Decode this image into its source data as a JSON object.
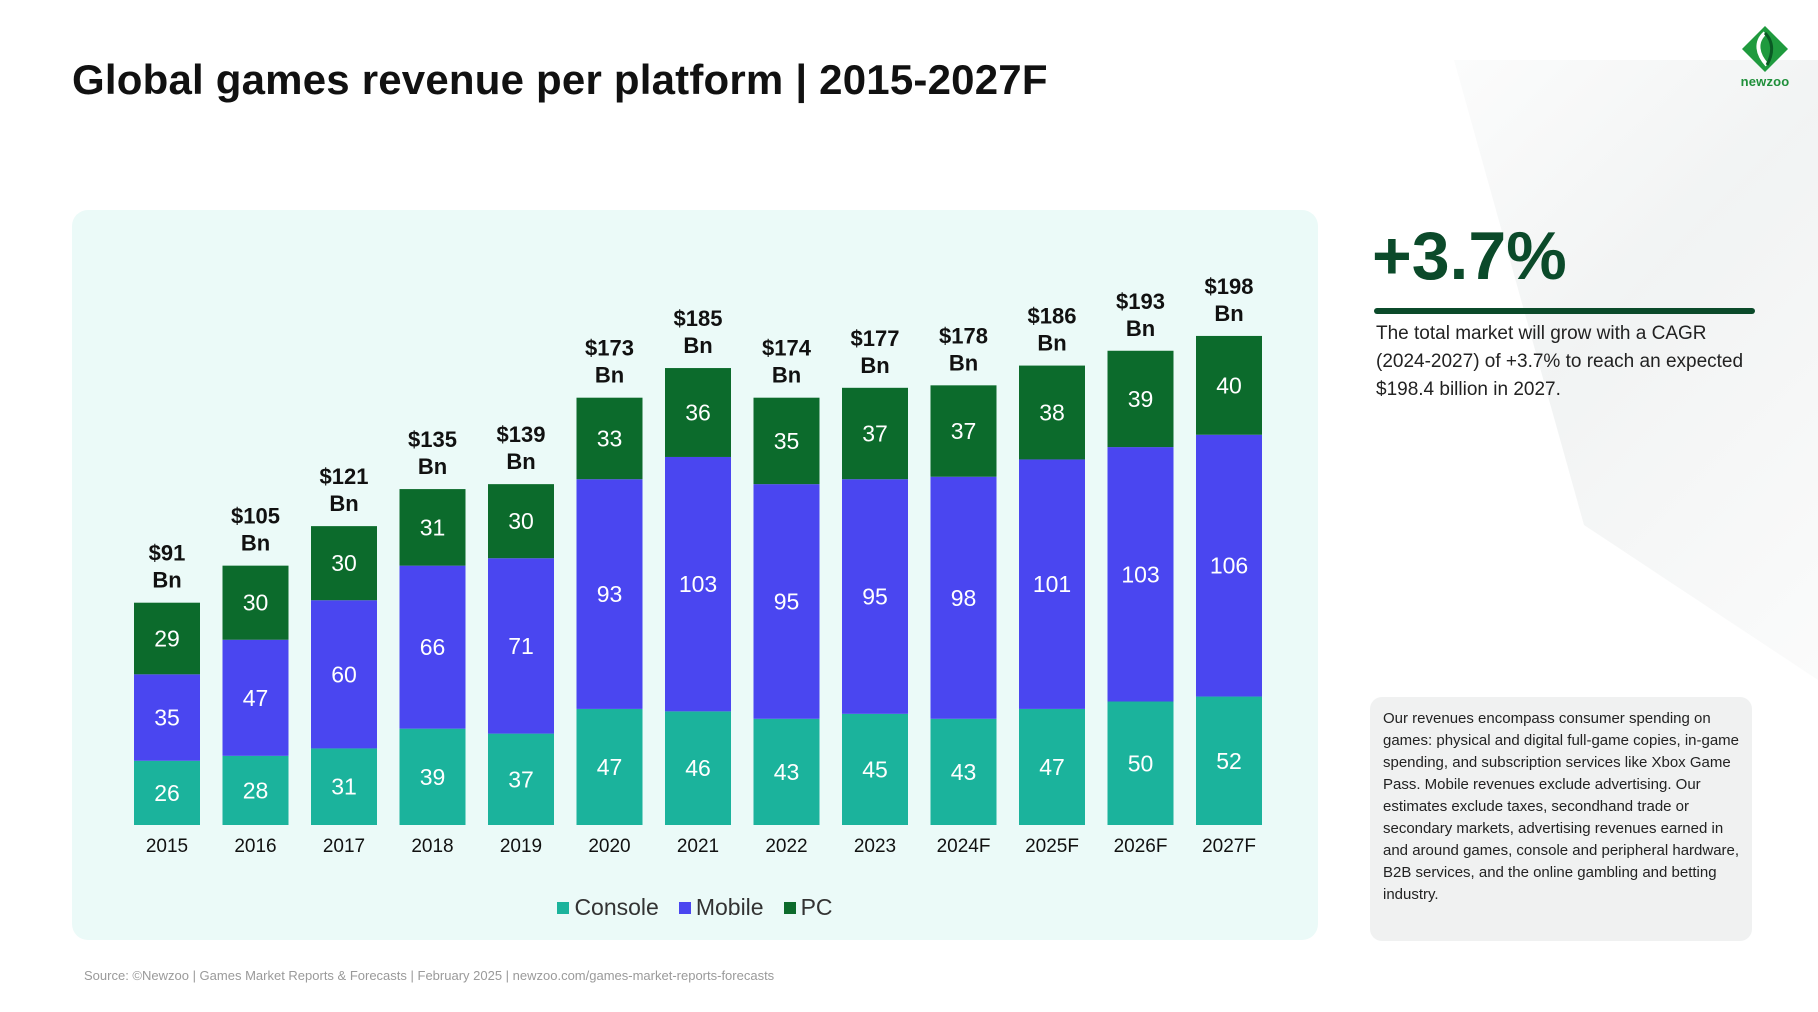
{
  "title": "Global games revenue per platform | 2015-2027F",
  "logo": {
    "text": "newzoo",
    "icon": "newzoo-logo-icon"
  },
  "colors": {
    "console": "#1bb39c",
    "mobile": "#4a46f0",
    "pc": "#0c6b2c",
    "accent": "#0b4a2a",
    "panel": "#ebfaf8"
  },
  "chart_data": {
    "type": "bar",
    "stacked": true,
    "categories": [
      "2015",
      "2016",
      "2017",
      "2018",
      "2019",
      "2020",
      "2021",
      "2022",
      "2023",
      "2024F",
      "2025F",
      "2026F",
      "2027F"
    ],
    "series": [
      {
        "name": "Console",
        "values": [
          26,
          28,
          31,
          39,
          37,
          47,
          46,
          43,
          45,
          43,
          47,
          50,
          52
        ]
      },
      {
        "name": "Mobile",
        "values": [
          35,
          47,
          60,
          66,
          71,
          93,
          103,
          95,
          95,
          98,
          101,
          103,
          106
        ]
      },
      {
        "name": "PC",
        "values": [
          29,
          30,
          30,
          31,
          30,
          33,
          36,
          35,
          37,
          37,
          38,
          39,
          40
        ]
      }
    ],
    "totals": [
      [
        "$91",
        "Bn"
      ],
      [
        "$105",
        "Bn"
      ],
      [
        "$121",
        "Bn"
      ],
      [
        "$135",
        "Bn"
      ],
      [
        "$139",
        "Bn"
      ],
      [
        "$173",
        "Bn"
      ],
      [
        "$185",
        "Bn"
      ],
      [
        "$174",
        "Bn"
      ],
      [
        "$177",
        "Bn"
      ],
      [
        "$178",
        "Bn"
      ],
      [
        "$186",
        "Bn"
      ],
      [
        "$193",
        "Bn"
      ],
      [
        "$198",
        "Bn"
      ]
    ],
    "legend": "bottom-center",
    "grid": false,
    "ylim": [
      0,
      198
    ]
  },
  "highlight": {
    "value": "+3.7%",
    "text": "The total market will grow with a CAGR (2024-2027) of +3.7% to reach an expected $198.4 billion in 2027."
  },
  "note": "Our revenues encompass consumer spending on games: physical and digital full-game copies, in-game spending, and subscription services like Xbox Game Pass. Mobile revenues exclude advertising. Our estimates exclude taxes, secondhand trade or secondary markets, advertising revenues earned in and around games, console and peripheral hardware, B2B services, and the online gambling and betting industry.",
  "source": "Source: ©Newzoo | Games Market Reports & Forecasts | February 2025 | newzoo.com/games-market-reports-forecasts"
}
